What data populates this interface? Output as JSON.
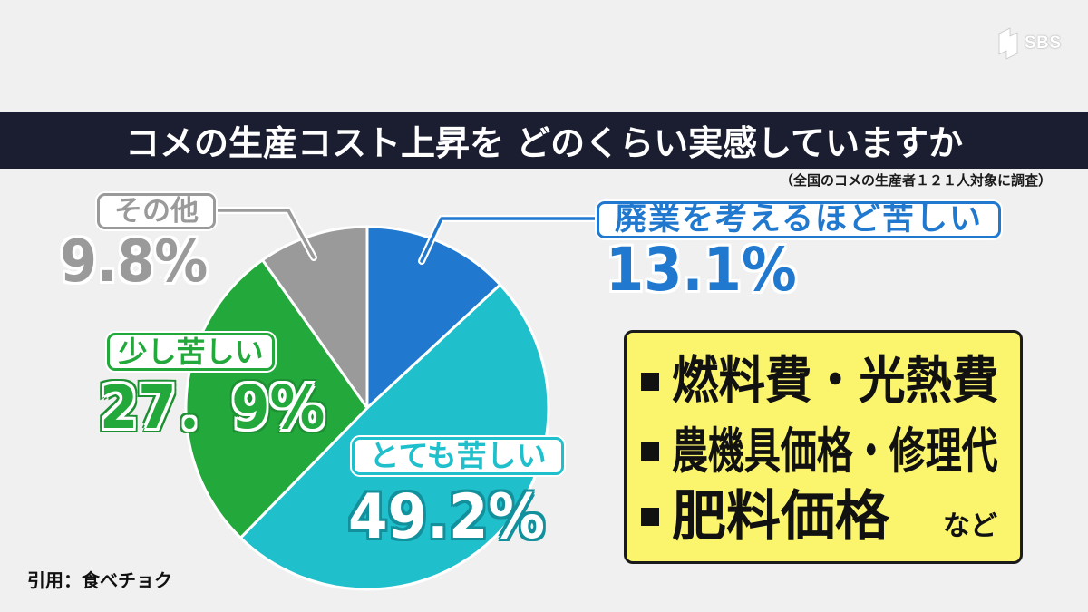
{
  "logo": {
    "text": "SBS",
    "icon": "sbs-logo-icon"
  },
  "source": "引用：食べチョク",
  "colors": {
    "background": "#f0f0f0",
    "title_bar": "#1b1e30"
  },
  "chart_data": {
    "type": "pie",
    "title": "コメの生産コスト上昇を どのくらい実感していますか",
    "subtitle": "（全国のコメの生産者１２１人対象に調査）",
    "start": "top",
    "direction": "clockwise",
    "slices": [
      {
        "label": "廃業を考えるほど苦しい",
        "value": 13.1,
        "value_label": "13.1%",
        "color": "#2079cf"
      },
      {
        "label": "とても苦しい",
        "value": 49.2,
        "value_label": "49.2%",
        "color": "#1fc0cb"
      },
      {
        "label": "少し苦しい",
        "value": 27.9,
        "value_label": "27．9%",
        "color": "#22a83b"
      },
      {
        "label": "その他",
        "value": 9.8,
        "value_label": "9.8%",
        "color": "#9a9a9a"
      }
    ]
  },
  "callout": {
    "bullet_icon": "square-bullet-icon",
    "items": [
      "燃料費・光熱費",
      "農機具価格・修理代",
      "肥料価格"
    ],
    "suffix": "など",
    "fill": "#fbf56d"
  }
}
